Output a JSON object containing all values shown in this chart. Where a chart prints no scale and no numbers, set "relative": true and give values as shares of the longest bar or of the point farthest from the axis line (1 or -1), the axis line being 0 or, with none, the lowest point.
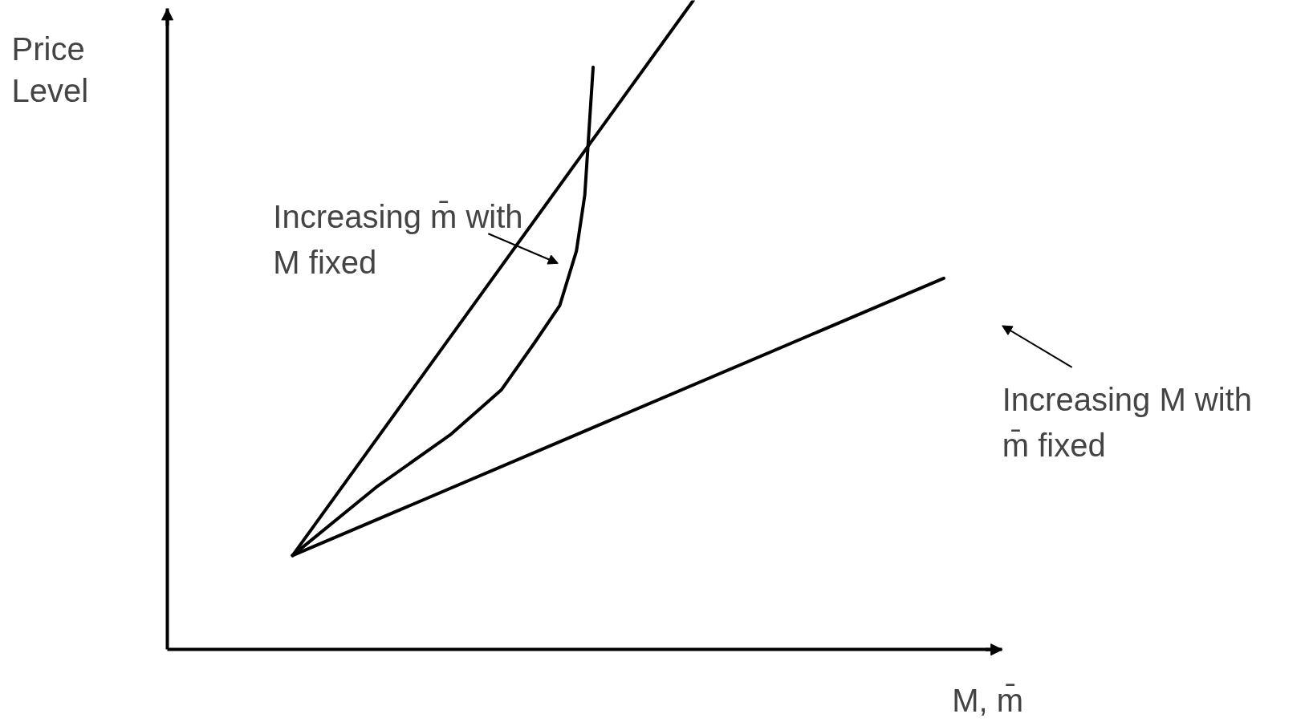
{
  "chart_data": {
    "type": "line",
    "relative": true,
    "xlabel": "M, m̄",
    "ylabel": "Price\nLevel",
    "categories": [
      null,
      null,
      null,
      null,
      null,
      null,
      null,
      null,
      null,
      null,
      null,
      null,
      null,
      null,
      null,
      null,
      null,
      null,
      null,
      null,
      null,
      null,
      null,
      null,
      null,
      null,
      null,
      null,
      null,
      null,
      null,
      null,
      null,
      null,
      null,
      null,
      null,
      null,
      null,
      null,
      null,
      null,
      null,
      null,
      null,
      null,
      null,
      null,
      null,
      null,
      null,
      null,
      null,
      null,
      null,
      null,
      null,
      null,
      null,
      null,
      null,
      null,
      null,
      null,
      null,
      null,
      null,
      null,
      null,
      null,
      null,
      null,
      null,
      null,
      null,
      null,
      null,
      null,
      null,
      null,
      null,
      null,
      null,
      null,
      null,
      null,
      null,
      null,
      null,
      null,
      null,
      null,
      null,
      null,
      null,
      null,
      null,
      null,
      null,
      null,
      null
    ],
    "series": [
      {
        "color": "#000000",
        "values": [
          null,
          null,
          null,
          null,
          null,
          null,
          null,
          null,
          null,
          null,
          null,
          null,
          null,
          null,
          null,
          0.145,
          null,
          null,
          null,
          null,
          null,
          null,
          null,
          null,
          null,
          null,
          null,
          null,
          null,
          null,
          null,
          null,
          null,
          null,
          null,
          null,
          null,
          null,
          null,
          null,
          null,
          null,
          null,
          null,
          null,
          null,
          null,
          null,
          null,
          null,
          null,
          null,
          null,
          null,
          null,
          null,
          null,
          null,
          null,
          null,
          null,
          null,
          null,
          1.0,
          null,
          null,
          null,
          null,
          null,
          null,
          null,
          null,
          null,
          null,
          null,
          null,
          null,
          null,
          null,
          null,
          null,
          null,
          null,
          null,
          null,
          null,
          null,
          null,
          null,
          null,
          null,
          null,
          null,
          null,
          null,
          null,
          null,
          null,
          null,
          null,
          null
        ]
      },
      {
        "color": "#000000",
        "values": [
          null,
          null,
          null,
          null,
          null,
          null,
          null,
          null,
          null,
          null,
          null,
          null,
          null,
          null,
          null,
          0.145,
          null,
          null,
          null,
          null,
          null,
          null,
          null,
          null,
          null,
          0.25,
          null,
          null,
          null,
          null,
          null,
          null,
          null,
          null,
          0.332,
          null,
          null,
          null,
          null,
          null,
          0.4,
          null,
          null,
          null,
          0.473,
          null,
          null,
          0.53,
          null,
          0.614,
          0.7,
          0.897,
          null,
          null,
          null,
          null,
          null,
          null,
          null,
          null,
          null,
          null,
          null,
          null,
          null,
          null,
          null,
          null,
          null,
          null,
          null,
          null,
          null,
          null,
          null,
          null,
          null,
          null,
          null,
          null,
          null,
          null,
          null,
          null,
          null,
          null,
          null,
          null,
          null,
          null,
          null,
          null,
          null,
          null,
          null,
          null,
          null,
          null,
          null,
          null,
          null
        ]
      },
      {
        "color": "#000000",
        "values": [
          null,
          null,
          null,
          null,
          null,
          null,
          null,
          null,
          null,
          null,
          null,
          null,
          null,
          null,
          null,
          0.145,
          null,
          null,
          null,
          null,
          null,
          null,
          null,
          null,
          null,
          null,
          null,
          null,
          null,
          null,
          null,
          null,
          null,
          null,
          null,
          null,
          null,
          null,
          null,
          null,
          null,
          null,
          null,
          null,
          null,
          null,
          null,
          null,
          null,
          null,
          null,
          null,
          null,
          null,
          null,
          null,
          null,
          null,
          null,
          null,
          null,
          null,
          null,
          null,
          null,
          null,
          null,
          null,
          null,
          null,
          null,
          null,
          null,
          null,
          null,
          null,
          null,
          null,
          null,
          null,
          null,
          null,
          null,
          null,
          null,
          null,
          null,
          null,
          null,
          null,
          null,
          null,
          null,
          0.572,
          null,
          null,
          null,
          null,
          null,
          null,
          null
        ]
      }
    ],
    "annotations": [
      "Increasing m̄ with\nM fixed",
      "Increasing M with\nm̄ fixed"
    ]
  }
}
